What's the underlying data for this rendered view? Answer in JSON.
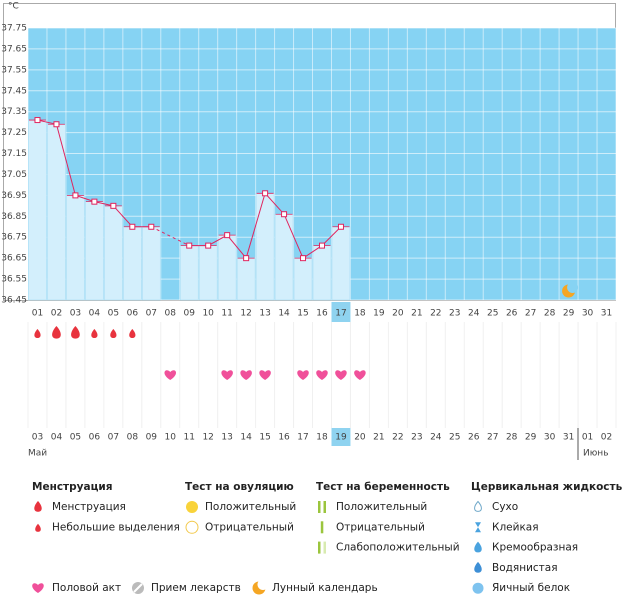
{
  "chart_data": {
    "type": "line",
    "y_unit": "°C",
    "categories": [
      "01",
      "02",
      "03",
      "04",
      "05",
      "06",
      "07",
      "08",
      "09",
      "10",
      "11",
      "12",
      "13",
      "14",
      "15",
      "16",
      "17",
      "18",
      "19",
      "20",
      "21",
      "22",
      "23",
      "24",
      "25",
      "26",
      "27",
      "28",
      "29",
      "30",
      "31"
    ],
    "values": [
      37.31,
      37.29,
      36.95,
      36.92,
      36.9,
      36.8,
      36.8,
      null,
      36.71,
      36.71,
      36.76,
      36.65,
      36.96,
      36.86,
      36.65,
      36.71,
      36.8,
      null,
      null,
      null,
      null,
      null,
      null,
      null,
      null,
      null,
      null,
      null,
      null,
      null,
      null
    ],
    "ylim": [
      36.45,
      37.75
    ],
    "yticks": [
      37.75,
      37.65,
      37.55,
      37.45,
      37.35,
      37.25,
      37.15,
      37.05,
      36.95,
      36.85,
      36.75,
      36.65,
      36.55,
      36.45
    ],
    "color": "#e0245e",
    "bar_color": "#d3effc",
    "background": "#86d3f3",
    "grid": true,
    "highlight_index": 16,
    "menstruation": [
      1,
      0,
      0,
      1,
      1,
      1,
      null,
      null,
      null,
      null,
      null,
      null,
      null,
      null,
      null,
      null,
      null,
      null,
      null,
      null,
      null,
      null,
      null,
      null,
      null,
      null,
      null,
      null,
      null,
      null,
      null
    ],
    "intercourse": [
      false,
      false,
      false,
      false,
      false,
      false,
      false,
      true,
      false,
      false,
      true,
      true,
      true,
      false,
      true,
      true,
      true,
      true,
      false,
      false,
      false,
      false,
      false,
      false,
      false,
      false,
      false,
      false,
      false,
      false,
      false
    ],
    "moon_index": 28,
    "dates": [
      "03",
      "04",
      "05",
      "06",
      "07",
      "08",
      "09",
      "10",
      "11",
      "12",
      "13",
      "14",
      "15",
      "16",
      "17",
      "18",
      "19",
      "20",
      "21",
      "22",
      "23",
      "24",
      "25",
      "26",
      "27",
      "28",
      "29",
      "30",
      "31",
      "01",
      "02"
    ],
    "date_colors": [
      "#555",
      "#555",
      "#555",
      "#555",
      "#d0103a",
      "#d0103a",
      "#555",
      "#555",
      "#555",
      "#555",
      "#555",
      "#d0103a",
      "#d0103a",
      "#555",
      "#555",
      "#555",
      "#555",
      "#555",
      "#d0103a",
      "#d0103a",
      "#555",
      "#555",
      "#555",
      "#555",
      "#555",
      "#d0103a",
      "#d0103a",
      "#555",
      "#555",
      "#555",
      "#555"
    ],
    "months": [
      "Май",
      "Июнь"
    ]
  },
  "legend": {
    "groups": [
      {
        "title": "Менструация",
        "items": [
          "Менструация",
          "Небольшие выделения"
        ]
      },
      {
        "title": "Тест на овуляцию",
        "items": [
          "Положительный",
          "Отрицательный"
        ]
      },
      {
        "title": "Тест на беременность",
        "items": [
          "Положительный",
          "Отрицательный",
          "Слабоположительный"
        ]
      },
      {
        "title": "Цервикальная жидкость",
        "items": [
          "Сухо",
          "Клейкая",
          "Кремообразная",
          "Водянистая",
          "Яичный белок"
        ]
      }
    ],
    "other": [
      "Половой акт",
      "Прием лекарств",
      "Лунный календарь"
    ]
  }
}
